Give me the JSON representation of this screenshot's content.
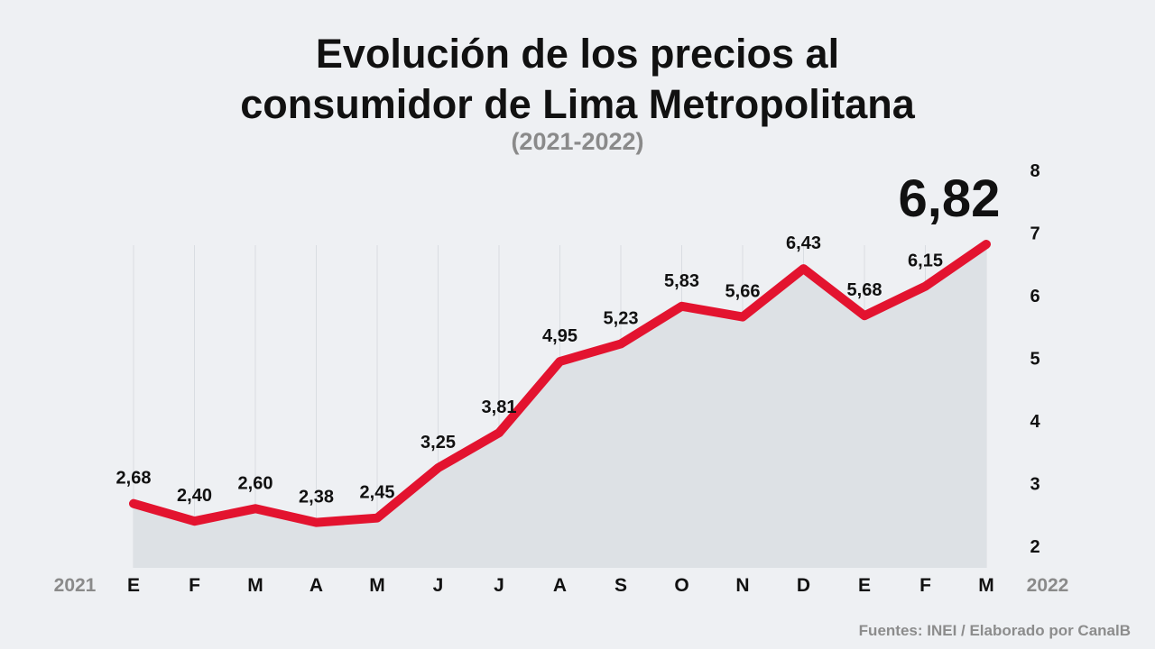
{
  "title_line1": "Evolución de los precios al",
  "title_line2": "consumidor de Lima Metropolitana",
  "subtitle": "(2021-2022)",
  "source": "Fuentes: INEI / Elaborado por CanalB",
  "colors": {
    "line": "#e3132f",
    "area": "#dde1e5",
    "grid": "#d9dde2",
    "background": "#eef0f3",
    "year_label": "#8a8a8a"
  },
  "chart_data": {
    "type": "area",
    "categories": [
      "E",
      "F",
      "M",
      "A",
      "M",
      "J",
      "J",
      "A",
      "S",
      "O",
      "N",
      "D",
      "E",
      "F",
      "M"
    ],
    "year_labels": {
      "start": "2021",
      "end": "2022"
    },
    "values": [
      2.68,
      2.4,
      2.6,
      2.38,
      2.45,
      3.25,
      3.81,
      4.95,
      5.23,
      5.83,
      5.66,
      6.43,
      5.68,
      6.15,
      6.82
    ],
    "data_labels": [
      "2,68",
      "2,40",
      "2,60",
      "2,38",
      "2,45",
      "3,25",
      "3,81",
      "4,95",
      "5,23",
      "5,83",
      "5,66",
      "6,43",
      "5,68",
      "6,15",
      "6,82"
    ],
    "y_ticks": [
      "2",
      "3",
      "4",
      "5",
      "6",
      "7",
      "8"
    ],
    "ylim": [
      2,
      8
    ],
    "y_axis_side": "right",
    "grid": "vertical",
    "legend": "none"
  }
}
